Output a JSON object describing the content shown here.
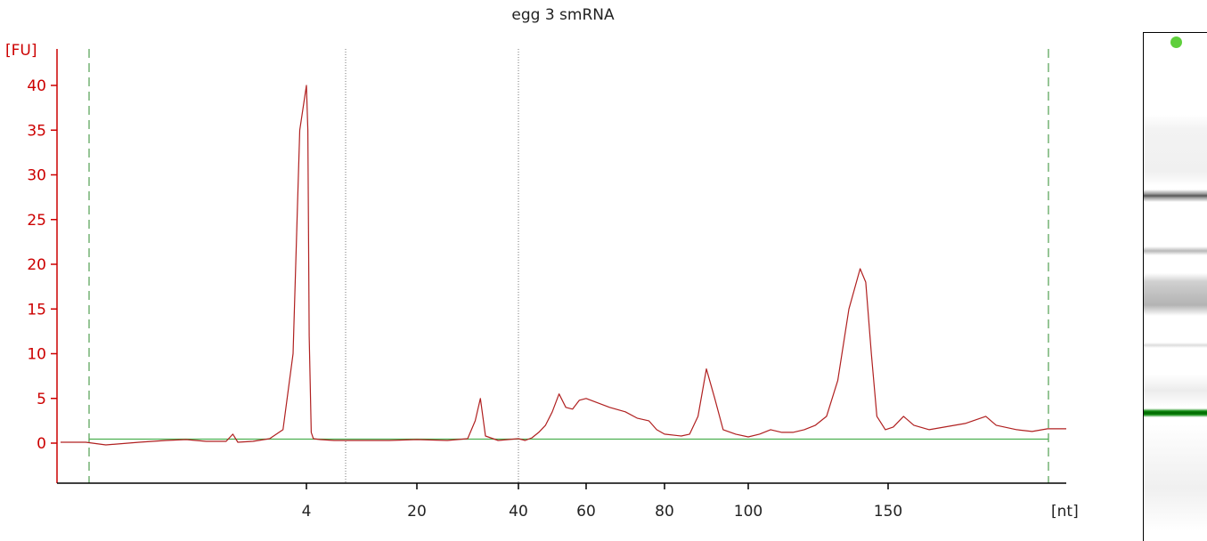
{
  "chart_data": {
    "type": "line",
    "title": "egg 3 smRNA",
    "ylabel": "[FU]",
    "xlabel": "[nt]",
    "ylim": [
      -4.5,
      43
    ],
    "yticks": [
      0,
      5,
      10,
      15,
      20,
      25,
      30,
      35,
      40
    ],
    "xtick_labels": [
      "4",
      "20",
      "40",
      "60",
      "80",
      "100",
      "150"
    ],
    "grid": false,
    "legend": "none",
    "colors": {
      "trace": "#b02020",
      "axis": "#cc0000",
      "baseline": "#4caf50",
      "marker_line": "#2e8b2e",
      "dotted": "#777777"
    },
    "series": [
      {
        "points": [
          [
            -2.6,
            0.1
          ],
          [
            -2.0,
            -0.2
          ],
          [
            -1.0,
            0.1
          ],
          [
            -0.2,
            0.3
          ],
          [
            0.4,
            0.4
          ],
          [
            1.0,
            0.2
          ],
          [
            1.6,
            0.2
          ],
          [
            1.8,
            1.0
          ],
          [
            1.95,
            0.1
          ],
          [
            2.4,
            0.2
          ],
          [
            2.9,
            0.5
          ],
          [
            3.3,
            1.5
          ],
          [
            3.6,
            10.0
          ],
          [
            3.8,
            35.0
          ],
          [
            4.0,
            40.0
          ],
          [
            4.2,
            35.0
          ],
          [
            4.4,
            12.0
          ],
          [
            4.7,
            1.2
          ],
          [
            5.0,
            0.5
          ],
          [
            6.0,
            0.4
          ],
          [
            8.0,
            0.3
          ],
          [
            12.0,
            0.3
          ],
          [
            16.0,
            0.3
          ],
          [
            20.0,
            0.4
          ],
          [
            26.0,
            0.3
          ],
          [
            30.0,
            0.5
          ],
          [
            31.5,
            2.5
          ],
          [
            32.5,
            5.0
          ],
          [
            33.5,
            0.8
          ],
          [
            36.0,
            0.3
          ],
          [
            40.0,
            0.5
          ],
          [
            42.0,
            0.3
          ],
          [
            44.0,
            0.6
          ],
          [
            46.0,
            1.2
          ],
          [
            48.0,
            2.0
          ],
          [
            50.0,
            3.5
          ],
          [
            52.0,
            5.5
          ],
          [
            54.0,
            4.0
          ],
          [
            56.0,
            3.8
          ],
          [
            58.0,
            4.8
          ],
          [
            60.0,
            5.0
          ],
          [
            63.0,
            4.5
          ],
          [
            66.0,
            4.0
          ],
          [
            70.0,
            3.5
          ],
          [
            73.0,
            2.8
          ],
          [
            76.0,
            2.5
          ],
          [
            78.0,
            1.5
          ],
          [
            80.0,
            1.0
          ],
          [
            84.0,
            0.8
          ],
          [
            86.0,
            1.0
          ],
          [
            88.0,
            3.0
          ],
          [
            90.0,
            8.3
          ],
          [
            92.0,
            5.0
          ],
          [
            94.0,
            1.5
          ],
          [
            97.0,
            1.0
          ],
          [
            100.0,
            0.7
          ],
          [
            104.0,
            1.0
          ],
          [
            108.0,
            1.5
          ],
          [
            112.0,
            1.2
          ],
          [
            116.0,
            1.2
          ],
          [
            120.0,
            1.5
          ],
          [
            124.0,
            2.0
          ],
          [
            128.0,
            3.0
          ],
          [
            132.0,
            7.0
          ],
          [
            136.0,
            15.0
          ],
          [
            140.0,
            19.5
          ],
          [
            142.0,
            18.0
          ],
          [
            144.0,
            10.0
          ],
          [
            146.0,
            3.0
          ],
          [
            149.0,
            1.5
          ],
          [
            152.0,
            1.8
          ],
          [
            156.0,
            3.0
          ],
          [
            160.0,
            2.0
          ],
          [
            166.0,
            1.5
          ],
          [
            172.0,
            1.8
          ],
          [
            180.0,
            2.2
          ],
          [
            186.0,
            2.8
          ],
          [
            188.0,
            3.0
          ],
          [
            192.0,
            2.0
          ],
          [
            200.0,
            1.5
          ],
          [
            206.0,
            1.3
          ],
          [
            212.0,
            1.6
          ]
        ]
      }
    ]
  }
}
